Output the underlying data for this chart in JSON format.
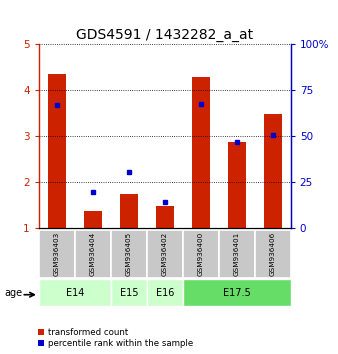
{
  "title": "GDS4591 / 1432282_a_at",
  "samples": [
    "GSM936403",
    "GSM936404",
    "GSM936405",
    "GSM936402",
    "GSM936400",
    "GSM936401",
    "GSM936406"
  ],
  "transformed_count": [
    4.35,
    1.38,
    1.75,
    1.48,
    4.28,
    2.88,
    3.48
  ],
  "percentile_rank": [
    3.68,
    1.78,
    2.22,
    1.58,
    3.7,
    2.88,
    3.02
  ],
  "age_groups": [
    {
      "label": "E14",
      "start": 0,
      "end": 2,
      "color": "#ccffcc"
    },
    {
      "label": "E15",
      "start": 2,
      "end": 3,
      "color": "#ccffcc"
    },
    {
      "label": "E16",
      "start": 3,
      "end": 4,
      "color": "#ccffcc"
    },
    {
      "label": "E17.5",
      "start": 4,
      "end": 7,
      "color": "#66dd66"
    }
  ],
  "ylim": [
    1,
    5
  ],
  "y2lim": [
    0,
    100
  ],
  "yticks": [
    1,
    2,
    3,
    4,
    5
  ],
  "y2ticks": [
    0,
    25,
    50,
    75,
    100
  ],
  "bar_color": "#cc2200",
  "dot_color": "#0000cc",
  "title_fontsize": 10,
  "tick_fontsize": 7.5,
  "bar_width": 0.5
}
